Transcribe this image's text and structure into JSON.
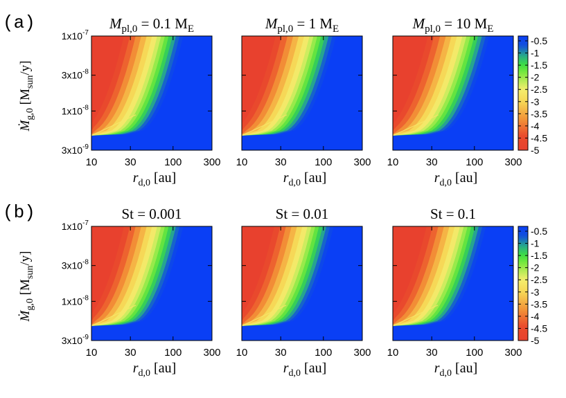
{
  "figure": {
    "rows": [
      {
        "label": "(a)"
      },
      {
        "label": "(b)"
      }
    ]
  },
  "chart_data": [
    {
      "type": "heatmap",
      "row": "(a)",
      "title": {
        "var": "M",
        "sub": "pl,0",
        "rest": " = 0.1 M",
        "rsub": "E"
      },
      "xlabel": {
        "var": "r",
        "sub": "d,0",
        "rest": " [au]"
      },
      "ylabel": {
        "var": "Ṁ",
        "sub": "g,0",
        "rest": " [M",
        "rsub": "sun",
        "tail": "/y]"
      },
      "xscale": "log",
      "xlim": [
        10,
        300
      ],
      "xticks": [
        "10",
        "30",
        "100",
        "300"
      ],
      "yscale": "log",
      "ylim": [
        3e-09,
        1e-07
      ],
      "yticks": [
        "3x10",
        "1x10",
        "3x10",
        "1x10"
      ],
      "yexp": [
        "-9",
        "-8",
        "-8",
        "-7"
      ],
      "boundary_r_at_ymin": 10,
      "boundary_r_at_ymax": 25,
      "band_width_factor": 3.0,
      "colorbar": null
    },
    {
      "type": "heatmap",
      "row": "(a)",
      "title": {
        "var": "M",
        "sub": "pl,0",
        "rest": " = 1 M",
        "rsub": "E"
      },
      "xlabel": {
        "var": "r",
        "sub": "d,0",
        "rest": " [au]"
      },
      "ylabel": null,
      "xscale": "log",
      "xlim": [
        10,
        300
      ],
      "xticks": [
        "10",
        "30",
        "100",
        "300"
      ],
      "yscale": "log",
      "ylim": [
        3e-09,
        1e-07
      ],
      "boundary_r_at_ymin": 10,
      "boundary_r_at_ymax": 26,
      "band_width_factor": 3.1,
      "colorbar": null
    },
    {
      "type": "heatmap",
      "row": "(a)",
      "title": {
        "var": "M",
        "sub": "pl,0",
        "rest": " = 10 M",
        "rsub": "E"
      },
      "xlabel": {
        "var": "r",
        "sub": "d,0",
        "rest": " [au]"
      },
      "ylabel": null,
      "xscale": "log",
      "xlim": [
        10,
        300
      ],
      "xticks": [
        "10",
        "30",
        "100",
        "300"
      ],
      "yscale": "log",
      "ylim": [
        3e-09,
        1e-07
      ],
      "boundary_r_at_ymin": 10,
      "boundary_r_at_ymax": 27,
      "band_width_factor": 3.2,
      "colorbar": {
        "ticks": [
          "-0.5",
          "-1",
          "-1.5",
          "-2",
          "-2.5",
          "-3",
          "-3.5",
          "-4",
          "-4.5",
          "-5"
        ],
        "range": [
          -5,
          -0.3
        ]
      }
    },
    {
      "type": "heatmap",
      "row": "(b)",
      "title": {
        "var": "",
        "sub": "",
        "rest": "St = 0.001",
        "rsub": ""
      },
      "xlabel": {
        "var": "r",
        "sub": "d,0",
        "rest": " [au]"
      },
      "ylabel": {
        "var": "Ṁ",
        "sub": "g,0",
        "rest": " [M",
        "rsub": "sun",
        "tail": "/y]"
      },
      "xscale": "log",
      "xlim": [
        10,
        300
      ],
      "xticks": [
        "10",
        "30",
        "100",
        "300"
      ],
      "yscale": "log",
      "ylim": [
        3e-09,
        1e-07
      ],
      "yticks": [
        "3x10",
        "1x10",
        "3x10",
        "1x10"
      ],
      "yexp": [
        "-9",
        "-8",
        "-8",
        "-7"
      ],
      "boundary_r_at_ymin": 10,
      "boundary_r_at_ymax": 25,
      "band_width_factor": 3.0,
      "colorbar": null
    },
    {
      "type": "heatmap",
      "row": "(b)",
      "title": {
        "var": "",
        "sub": "",
        "rest": "St = 0.01",
        "rsub": ""
      },
      "xlabel": {
        "var": "r",
        "sub": "d,0",
        "rest": " [au]"
      },
      "ylabel": null,
      "xscale": "log",
      "xlim": [
        10,
        300
      ],
      "xticks": [
        "10",
        "30",
        "100",
        "300"
      ],
      "yscale": "log",
      "ylim": [
        3e-09,
        1e-07
      ],
      "boundary_r_at_ymin": 10,
      "boundary_r_at_ymax": 25,
      "band_width_factor": 3.0,
      "colorbar": null
    },
    {
      "type": "heatmap",
      "row": "(b)",
      "title": {
        "var": "",
        "sub": "",
        "rest": "St = 0.1",
        "rsub": ""
      },
      "xlabel": {
        "var": "r",
        "sub": "d,0",
        "rest": " [au]"
      },
      "ylabel": null,
      "xscale": "log",
      "xlim": [
        10,
        300
      ],
      "xticks": [
        "10",
        "30",
        "100",
        "300"
      ],
      "yscale": "log",
      "ylim": [
        3e-09,
        1e-07
      ],
      "boundary_r_at_ymin": 10,
      "boundary_r_at_ymax": 26,
      "band_width_factor": 3.0,
      "colorbar": {
        "ticks": [
          "-0.5",
          "-1",
          "-1.5",
          "-2",
          "-2.5",
          "-3",
          "-3.5",
          "-4",
          "-4.5",
          "-5"
        ],
        "range": [
          -5,
          -0.3
        ]
      }
    }
  ],
  "colors": {
    "red": "#e8412e",
    "yellow": "#f4ee6e",
    "green": "#3ee041",
    "blue": "#0a3ff5",
    "frame": "#000000"
  }
}
